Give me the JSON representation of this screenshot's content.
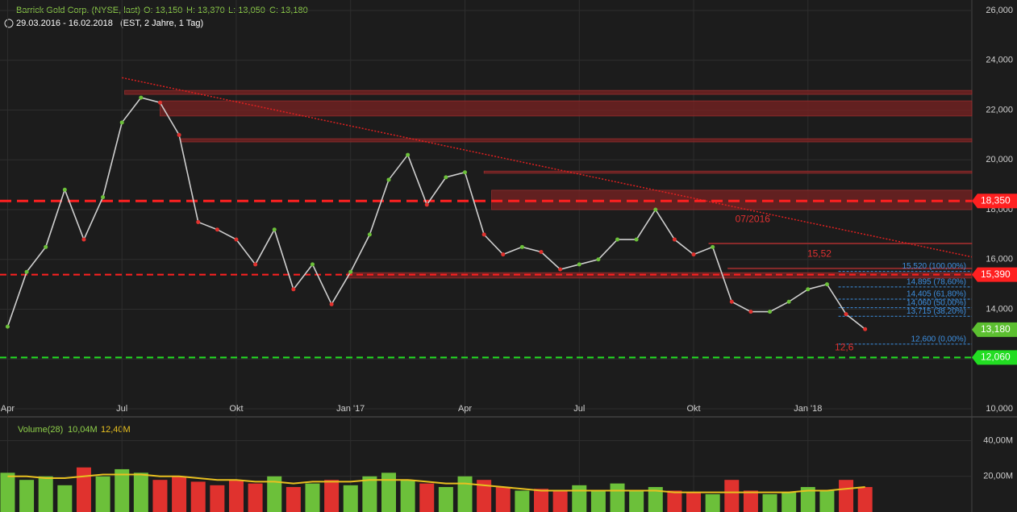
{
  "chart_data": {
    "type": "line",
    "title": "Barrick Gold Corp. (NYSE, last)",
    "ohlc": [
      "O: 13,150",
      "H: 13,370",
      "L: 13,050",
      "C: 13,180"
    ],
    "subtitle": "29.03.2016 - 16.02.2018",
    "subtitle_note": "(EST, 2 Jahre, 1 Tag)",
    "xlim": [
      -0.2,
      25.3
    ],
    "xticks": [
      {
        "value": 0,
        "label": "Apr"
      },
      {
        "value": 3,
        "label": "Jul"
      },
      {
        "value": 6,
        "label": "Okt"
      },
      {
        "value": 9,
        "label": "Jan '17"
      },
      {
        "value": 12,
        "label": "Apr"
      },
      {
        "value": 15,
        "label": "Jul"
      },
      {
        "value": 18,
        "label": "Okt"
      },
      {
        "value": 21,
        "label": "Jan '18"
      }
    ],
    "ylim": [
      10,
      26
    ],
    "yticks": [
      {
        "value": 10,
        "label": "10,000"
      },
      {
        "value": 12,
        "label": "12,000"
      },
      {
        "value": 14,
        "label": "14,000"
      },
      {
        "value": 16,
        "label": "16,000"
      },
      {
        "value": 18,
        "label": "18,000"
      },
      {
        "value": 20,
        "label": "20,000"
      },
      {
        "value": 22,
        "label": "22,000"
      },
      {
        "value": 24,
        "label": "24,000"
      },
      {
        "value": 26,
        "label": "26,000"
      }
    ],
    "grid": true,
    "color": "#cfcfcf",
    "x": [
      0,
      0.5,
      1,
      1.5,
      2,
      2.5,
      3,
      3.5,
      4,
      4.5,
      5,
      5.5,
      6,
      6.5,
      7,
      7.5,
      8,
      8.5,
      9,
      9.5,
      10,
      10.5,
      11,
      11.5,
      12,
      12.5,
      13,
      13.5,
      14,
      14.5,
      15,
      15.5,
      16,
      16.5,
      17,
      17.5,
      18,
      18.5,
      19,
      19.5,
      20,
      20.5,
      21,
      21.5,
      22,
      22.5
    ],
    "values": [
      13.3,
      15.5,
      16.5,
      18.8,
      16.8,
      18.5,
      21.5,
      22.5,
      22.3,
      21.0,
      17.5,
      17.2,
      16.8,
      15.8,
      17.2,
      14.8,
      15.8,
      14.2,
      15.5,
      17.0,
      19.2,
      20.2,
      18.2,
      19.3,
      19.5,
      17.0,
      16.2,
      16.5,
      16.3,
      15.6,
      15.8,
      16.0,
      16.8,
      16.8,
      18.0,
      16.8,
      16.2,
      16.5,
      14.3,
      13.9,
      13.9,
      14.3,
      14.8,
      15.0,
      13.8,
      13.2
    ],
    "zones": [
      {
        "x": 3.07,
        "range": [
          22.63,
          22.79
        ]
      },
      {
        "x": 4.0,
        "range": [
          21.76,
          22.37
        ]
      },
      {
        "x": 4.55,
        "range": [
          20.72,
          20.85
        ]
      },
      {
        "x": 12.5,
        "range": [
          19.46,
          19.55
        ]
      },
      {
        "x": 12.7,
        "range": [
          18.0,
          18.78
        ]
      },
      {
        "x": 18.4,
        "range": [
          16.62,
          16.66
        ]
      },
      {
        "x": 18.9,
        "range": [
          15.62,
          15.66
        ]
      },
      {
        "x": 8.92,
        "range": [
          15.25,
          15.47
        ]
      }
    ],
    "trendline": {
      "x": [
        3.0,
        25.3
      ],
      "y": [
        23.3,
        16.1
      ],
      "color": "#e02020"
    },
    "levels": [
      {
        "value": 18.35,
        "label": "18,350",
        "color": "#ff2020",
        "dash": "14 7",
        "width": 3
      },
      {
        "value": 15.39,
        "label": "15,390",
        "color": "#ff2020",
        "dash": "8 5",
        "width": 2
      },
      {
        "value": 12.06,
        "label": "12,060",
        "color": "#22dd22",
        "dash": "8 5",
        "width": 2
      }
    ],
    "last": {
      "value": 13.18,
      "label": "13,180",
      "color": "#5cbf30"
    },
    "fib": {
      "x": 21.8,
      "color": "#3d8fe0",
      "levels": [
        {
          "value": 15.52,
          "label": "15,520 (100,00%)"
        },
        {
          "value": 14.895,
          "label": "14,895 (78,60%)"
        },
        {
          "value": 14.405,
          "label": "14,405 (61,80%)"
        },
        {
          "value": 14.06,
          "label": "14,060 (50,00%)"
        },
        {
          "value": 13.715,
          "label": "13,715 (38,20%)"
        },
        {
          "value": 12.6,
          "label": "12,600 (0,00%)"
        }
      ]
    },
    "annotations": [
      {
        "text": "07/2016",
        "x": 19.55,
        "y": 17.6
      },
      {
        "text": "15,52",
        "x": 21.3,
        "y": 16.2
      },
      {
        "text": "12,6",
        "x": 21.95,
        "y": 12.45
      }
    ],
    "volume": {
      "title": "Volume(28)",
      "v1": "10,04M",
      "v2": "12,40M",
      "ylim": [
        0,
        52
      ],
      "yticks": [
        {
          "value": 20,
          "label": "20,00M"
        },
        {
          "value": 40,
          "label": "40,00M"
        }
      ],
      "values": [
        22,
        18,
        20,
        15,
        25,
        20,
        24,
        22,
        18,
        20,
        17,
        15,
        18,
        16,
        20,
        14,
        16,
        18,
        15,
        20,
        22,
        18,
        16,
        14,
        20,
        18,
        14,
        12,
        13,
        12,
        15,
        12,
        16,
        12,
        14,
        12,
        11,
        10,
        18,
        12,
        10,
        11,
        14,
        12,
        18,
        14
      ],
      "ma": [
        20,
        20,
        19,
        19,
        20,
        21,
        21,
        21,
        20,
        20,
        19,
        18,
        18,
        17,
        17,
        16,
        17,
        17,
        17,
        18,
        18,
        18,
        17,
        16,
        16,
        15,
        14,
        13,
        12,
        12,
        12,
        12,
        12,
        12,
        12,
        11,
        11,
        11,
        11,
        11,
        11,
        11,
        12,
        12,
        13,
        14
      ],
      "ma_color": "#e8c020"
    }
  }
}
